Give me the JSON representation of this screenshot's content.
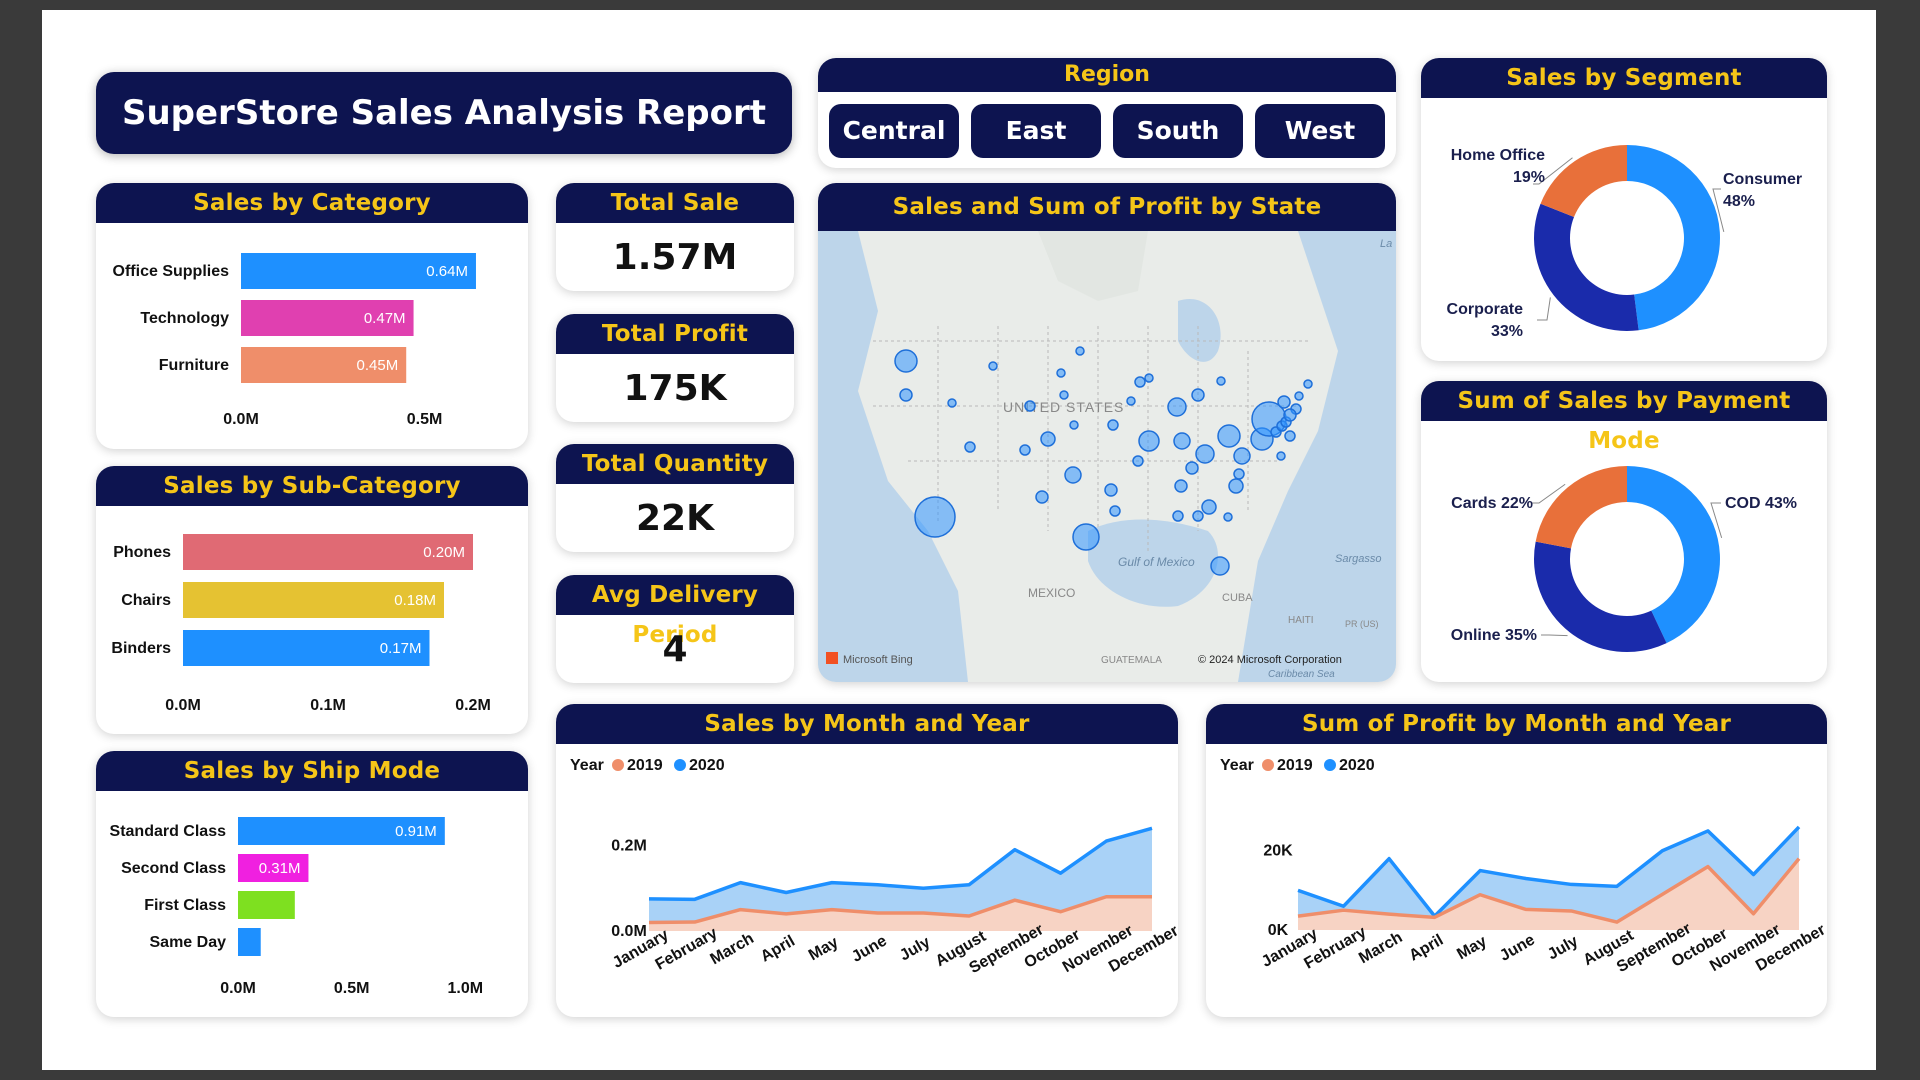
{
  "title": "SuperStore Sales Analysis Report",
  "region": {
    "header": "Region",
    "options": [
      "Central",
      "East",
      "South",
      "West"
    ]
  },
  "kpis": {
    "total_sale": {
      "label": "Total Sale",
      "value": "1.57M"
    },
    "total_profit": {
      "label": "Total Profit",
      "value": "175K"
    },
    "total_quantity": {
      "label": "Total Quantity",
      "value": "22K"
    },
    "avg_delivery": {
      "label": "Avg Delivery Period",
      "value": "4"
    }
  },
  "colors": {
    "header_bg": "#0d1450",
    "header_text": "#f5c518",
    "blue": "#1e90ff",
    "dark_blue": "#1a2bab",
    "orange": "#e8703a",
    "salmon": "#ef8e6a"
  },
  "map": {
    "title": "Sales and Sum of Profit by State",
    "labels": {
      "usa": "UNITED STATES",
      "gulf": "Gulf of Mexico",
      "mexico": "MEXICO",
      "cuba": "CUBA",
      "haiti": "HAITI",
      "pr": "PR (US)",
      "guatemala": "GUATEMALA",
      "sargasso": "Sargasso",
      "caribbean": "Caribbean Sea",
      "la": "La"
    },
    "bing": "Microsoft Bing",
    "copyright": "© 2024 Microsoft Corporation"
  },
  "chart_data": [
    {
      "id": "category",
      "type": "bar",
      "orientation": "horizontal",
      "title": "Sales by Category",
      "categories": [
        "Office Supplies",
        "Technology",
        "Furniture"
      ],
      "values": [
        0.64,
        0.47,
        0.45
      ],
      "value_labels": [
        "0.64M",
        "0.47M",
        "0.45M"
      ],
      "bar_colors": [
        "#1e90ff",
        "#e040b0",
        "#ef8e6a"
      ],
      "xlim": [
        0,
        0.7
      ],
      "ticks": [
        0,
        0.5
      ],
      "tick_labels": [
        "0.0M",
        "0.5M"
      ]
    },
    {
      "id": "subcategory",
      "type": "bar",
      "orientation": "horizontal",
      "title": "Sales by Sub-Category",
      "categories": [
        "Phones",
        "Chairs",
        "Binders"
      ],
      "values": [
        0.2,
        0.18,
        0.17
      ],
      "value_labels": [
        "0.20M",
        "0.18M",
        "0.17M"
      ],
      "bar_colors": [
        "#e06a74",
        "#e5c232",
        "#1e90ff"
      ],
      "xlim": [
        0,
        0.22
      ],
      "ticks": [
        0,
        0.1,
        0.2
      ],
      "tick_labels": [
        "0.0M",
        "0.1M",
        "0.2M"
      ]
    },
    {
      "id": "shipmode",
      "type": "bar",
      "orientation": "horizontal",
      "title": "Sales by Ship Mode",
      "categories": [
        "Standard Class",
        "Second Class",
        "First Class",
        "Same Day"
      ],
      "values": [
        0.91,
        0.31,
        0.25,
        0.1
      ],
      "value_labels": [
        "0.91M",
        "0.31M",
        "",
        ""
      ],
      "bar_colors": [
        "#1e90ff",
        "#f020e0",
        "#7ee020",
        "#1e90ff"
      ],
      "xlim": [
        0,
        1.1
      ],
      "ticks": [
        0,
        0.5,
        1.0
      ],
      "tick_labels": [
        "0.0M",
        "0.5M",
        "1.0M"
      ]
    },
    {
      "id": "segment",
      "type": "pie",
      "title": "Sales by Segment",
      "slices": [
        {
          "name": "Consumer",
          "value": 48,
          "label": "48%",
          "color": "#1e90ff"
        },
        {
          "name": "Corporate",
          "value": 33,
          "label": "33%",
          "color": "#1a2bab"
        },
        {
          "name": "Home Office",
          "value": 19,
          "label": "19%",
          "color": "#e8703a"
        }
      ]
    },
    {
      "id": "payment",
      "type": "pie",
      "title": "Sum of Sales by Payment Mode",
      "slices": [
        {
          "name": "COD",
          "value": 43,
          "label": "COD 43%",
          "color": "#1e90ff"
        },
        {
          "name": "Online",
          "value": 35,
          "label": "Online 35%",
          "color": "#1a2bab"
        },
        {
          "name": "Cards",
          "value": 22,
          "label": "Cards 22%",
          "color": "#e8703a"
        }
      ]
    },
    {
      "id": "sales_month",
      "type": "area",
      "title": "Sales by Month and Year",
      "legend_title": "Year",
      "x": [
        "January",
        "February",
        "March",
        "April",
        "May",
        "June",
        "July",
        "August",
        "September",
        "October",
        "November",
        "December"
      ],
      "ylim": [
        0,
        0.25
      ],
      "ticks": [
        0,
        0.2
      ],
      "tick_labels": [
        "0.0M",
        "0.2M"
      ],
      "series": [
        {
          "name": "2020",
          "color": "#1e90ff",
          "fill": "#a9d2f7",
          "values": [
            0.075,
            0.074,
            0.113,
            0.09,
            0.113,
            0.108,
            0.1,
            0.108,
            0.19,
            0.135,
            0.21,
            0.24
          ]
        },
        {
          "name": "2019",
          "color": "#ef8e6a",
          "fill": "#f7d3c4",
          "values": [
            0.02,
            0.021,
            0.05,
            0.04,
            0.05,
            0.042,
            0.042,
            0.035,
            0.072,
            0.045,
            0.08,
            0.08
          ]
        }
      ]
    },
    {
      "id": "profit_month",
      "type": "area",
      "title": "Sum of Profit by Month and Year",
      "legend_title": "Year",
      "x": [
        "January",
        "February",
        "March",
        "April",
        "May",
        "June",
        "July",
        "August",
        "September",
        "October",
        "November",
        "December"
      ],
      "ylim": [
        0,
        27000
      ],
      "ticks": [
        0,
        20000
      ],
      "tick_labels": [
        "0K",
        "20K"
      ],
      "series": [
        {
          "name": "2020",
          "color": "#1e90ff",
          "fill": "#a9d2f7",
          "values": [
            10000,
            6000,
            18000,
            3500,
            15000,
            13000,
            11500,
            11000,
            20000,
            25000,
            14000,
            26000
          ]
        },
        {
          "name": "2019",
          "color": "#ef8e6a",
          "fill": "#f7d3c4",
          "values": [
            3500,
            5000,
            4000,
            3200,
            8900,
            5200,
            4800,
            2000,
            9000,
            16000,
            4100,
            18000
          ]
        }
      ]
    }
  ]
}
